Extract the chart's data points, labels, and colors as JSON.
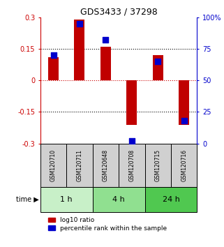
{
  "title": "GDS3433 / 37298",
  "samples": [
    "GSM120710",
    "GSM120711",
    "GSM120648",
    "GSM120708",
    "GSM120715",
    "GSM120716"
  ],
  "log10_ratio": [
    0.11,
    0.29,
    0.16,
    -0.21,
    0.12,
    -0.21
  ],
  "percentile_rank": [
    70,
    95,
    82,
    2,
    65,
    18
  ],
  "time_groups": [
    {
      "label": "1 h",
      "start": 0,
      "end": 2,
      "color": "#c8f0c8"
    },
    {
      "label": "4 h",
      "start": 2,
      "end": 4,
      "color": "#90e090"
    },
    {
      "label": "24 h",
      "start": 4,
      "end": 6,
      "color": "#50c850"
    }
  ],
  "bar_color": "#c00000",
  "dot_color": "#0000cc",
  "ylim_left": [
    -0.3,
    0.3
  ],
  "ylim_right": [
    0,
    100
  ],
  "yticks_left": [
    -0.3,
    -0.15,
    0,
    0.15,
    0.3
  ],
  "yticks_right": [
    0,
    25,
    50,
    75,
    100
  ],
  "ytick_labels_right": [
    "0",
    "25",
    "50",
    "75",
    "100%"
  ],
  "hline_dotted": [
    -0.15,
    0.15
  ],
  "hline_red": 0,
  "sample_bg_color": "#d0d0d0",
  "bar_width": 0.4,
  "dot_size": 36
}
